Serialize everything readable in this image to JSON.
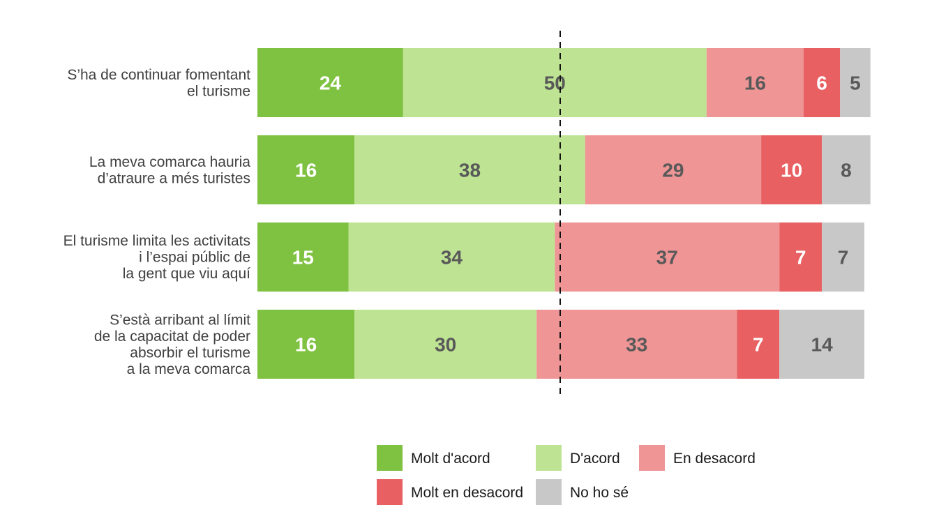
{
  "chart_data": {
    "type": "bar",
    "orientation": "horizontal",
    "stacked": true,
    "categories": [
      [
        "S’ha de continuar fomentant",
        "el turisme"
      ],
      [
        "La meva comarca hauria",
        "d’atraure a més turistes"
      ],
      [
        "El turisme limita les activitats",
        "i l’espai públic de",
        "la gent que viu aquí"
      ],
      [
        "S’està arribant al límit",
        "de la capacitat de poder",
        "absorbir el turisme",
        "a la meva comarca"
      ]
    ],
    "series": [
      {
        "name": "Molt d'acord",
        "color": "#7fc241",
        "label_color": "#ffffff",
        "values": [
          24,
          16,
          15,
          16
        ]
      },
      {
        "name": "D'acord",
        "color": "#bde393",
        "label_color": "#595959",
        "values": [
          50,
          38,
          34,
          30
        ]
      },
      {
        "name": "En desacord",
        "color": "#ef9595",
        "label_color": "#595959",
        "values": [
          16,
          29,
          37,
          33
        ]
      },
      {
        "name": "Molt en desacord",
        "color": "#e86062",
        "label_color": "#ffffff",
        "values": [
          6,
          10,
          7,
          7
        ]
      },
      {
        "name": "No ho sé",
        "color": "#c8c8c8",
        "label_color": "#595959",
        "values": [
          5,
          8,
          7,
          14
        ]
      }
    ],
    "reference_line": {
      "style": "dashed",
      "position": 50
    },
    "legend": {
      "placement": "bottom"
    },
    "title": "",
    "xlabel": "",
    "ylabel": ""
  }
}
